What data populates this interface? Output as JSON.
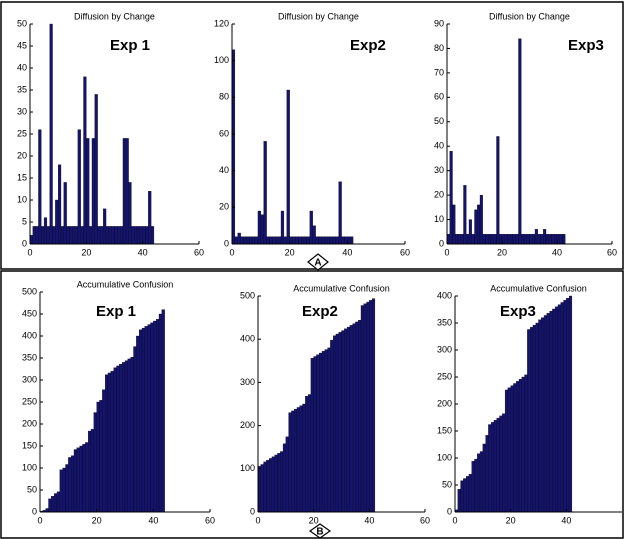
{
  "panels": [
    "A",
    "B"
  ],
  "chart_data": [
    {
      "type": "histogram",
      "title": "Diffusion by Change",
      "annotation": "Exp 1",
      "color": "#14146e",
      "bins": [
        0,
        1,
        2,
        3,
        4,
        5,
        6,
        7,
        8,
        9,
        10,
        11,
        12,
        13,
        14,
        15,
        16,
        17,
        18,
        19,
        20,
        21,
        22,
        23,
        24,
        25,
        26,
        27,
        28,
        29,
        30,
        31,
        32,
        33,
        34,
        35,
        36,
        37,
        38,
        39,
        40,
        41,
        42,
        43,
        44
      ],
      "values": [
        2,
        4,
        4,
        26,
        4,
        6,
        4,
        50,
        4,
        10,
        18,
        4,
        14,
        4,
        4,
        4,
        4,
        26,
        4,
        38,
        24,
        4,
        24,
        34,
        4,
        4,
        8,
        4,
        4,
        4,
        4,
        4,
        4,
        24,
        24,
        14,
        4,
        4,
        4,
        4,
        4,
        4,
        12,
        4
      ],
      "xlim": [
        0,
        60
      ],
      "xticks": [
        0,
        20,
        40,
        60
      ],
      "ylim": [
        0,
        50
      ],
      "yticks": [
        0,
        5,
        10,
        15,
        20,
        25,
        30,
        35,
        40,
        45,
        50
      ]
    },
    {
      "type": "histogram",
      "title": "Diffusion by Change",
      "annotation": "Exp2",
      "color": "#14146e",
      "bins": [
        0,
        1,
        2,
        3,
        4,
        5,
        6,
        7,
        8,
        9,
        10,
        11,
        12,
        13,
        14,
        15,
        16,
        17,
        18,
        19,
        20,
        21,
        22,
        23,
        24,
        25,
        26,
        27,
        28,
        29,
        30,
        31,
        32,
        33,
        34,
        35,
        36,
        37,
        38,
        39,
        40,
        41,
        42
      ],
      "values": [
        106,
        4,
        6,
        4,
        4,
        4,
        4,
        4,
        4,
        18,
        16,
        56,
        4,
        4,
        4,
        4,
        4,
        18,
        4,
        84,
        4,
        4,
        4,
        4,
        4,
        4,
        4,
        18,
        10,
        4,
        4,
        4,
        4,
        4,
        4,
        4,
        4,
        34,
        4,
        4,
        4,
        4
      ],
      "xlim": [
        0,
        60
      ],
      "xticks": [
        0,
        20,
        40,
        60
      ],
      "ylim": [
        0,
        120
      ],
      "yticks": [
        0,
        20,
        40,
        60,
        80,
        100,
        120
      ]
    },
    {
      "type": "histogram",
      "title": "Diffusion by Change",
      "annotation": "Exp3",
      "color": "#14146e",
      "bins": [
        0,
        1,
        2,
        3,
        4,
        5,
        6,
        7,
        8,
        9,
        10,
        11,
        12,
        13,
        14,
        15,
        16,
        17,
        18,
        19,
        20,
        21,
        22,
        23,
        24,
        25,
        26,
        27,
        28,
        29,
        30,
        31,
        32,
        33,
        34,
        35,
        36,
        37,
        38,
        39,
        40,
        41,
        42,
        43
      ],
      "values": [
        4,
        38,
        16,
        4,
        4,
        4,
        24,
        4,
        10,
        4,
        14,
        16,
        20,
        4,
        4,
        4,
        4,
        4,
        44,
        4,
        4,
        4,
        4,
        4,
        4,
        4,
        84,
        4,
        4,
        4,
        4,
        4,
        6,
        4,
        4,
        6,
        4,
        4,
        4,
        4,
        4,
        4,
        4
      ],
      "xlim": [
        0,
        60
      ],
      "xticks": [
        0,
        20,
        40,
        60
      ],
      "ylim": [
        0,
        90
      ],
      "yticks": [
        0,
        10,
        20,
        30,
        40,
        50,
        60,
        70,
        80,
        90
      ]
    },
    {
      "type": "histogram",
      "title": "Accumulative Confusion",
      "annotation": "Exp 1",
      "color": "#14146e",
      "bins": [
        0,
        1,
        2,
        3,
        4,
        5,
        6,
        7,
        8,
        9,
        10,
        11,
        12,
        13,
        14,
        15,
        16,
        17,
        18,
        19,
        20,
        21,
        22,
        23,
        24,
        25,
        26,
        27,
        28,
        29,
        30,
        31,
        32,
        33,
        34,
        35,
        36,
        37,
        38,
        39,
        40,
        41,
        42,
        43,
        44
      ],
      "values": [
        2,
        4,
        8,
        30,
        36,
        42,
        46,
        96,
        100,
        108,
        124,
        128,
        142,
        146,
        150,
        154,
        158,
        184,
        188,
        226,
        250,
        254,
        278,
        312,
        316,
        320,
        328,
        332,
        336,
        340,
        344,
        348,
        352,
        376,
        400,
        414,
        418,
        422,
        426,
        430,
        434,
        438,
        450,
        460
      ],
      "xlim": [
        0,
        60
      ],
      "xticks": [
        0,
        20,
        40,
        60
      ],
      "ylim": [
        0,
        500
      ],
      "yticks": [
        0,
        50,
        100,
        150,
        200,
        250,
        300,
        350,
        400,
        450,
        500
      ]
    },
    {
      "type": "histogram",
      "title": "Accumulative Confusion",
      "annotation": "Exp2",
      "color": "#14146e",
      "bins": [
        0,
        1,
        2,
        3,
        4,
        5,
        6,
        7,
        8,
        9,
        10,
        11,
        12,
        13,
        14,
        15,
        16,
        17,
        18,
        19,
        20,
        21,
        22,
        23,
        24,
        25,
        26,
        27,
        28,
        29,
        30,
        31,
        32,
        33,
        34,
        35,
        36,
        37,
        38,
        39,
        40,
        41,
        42
      ],
      "values": [
        106,
        110,
        116,
        120,
        124,
        128,
        132,
        136,
        140,
        158,
        174,
        230,
        234,
        238,
        242,
        246,
        250,
        268,
        272,
        356,
        360,
        364,
        368,
        372,
        376,
        380,
        398,
        408,
        412,
        416,
        420,
        424,
        428,
        432,
        436,
        440,
        444,
        478,
        482,
        486,
        490,
        494
      ],
      "xlim": [
        0,
        60
      ],
      "xticks": [
        0,
        20,
        40,
        60
      ],
      "ylim": [
        0,
        500
      ],
      "yticks": [
        0,
        100,
        200,
        300,
        400,
        500
      ]
    },
    {
      "type": "histogram",
      "title": "Accumulative Confusion",
      "annotation": "Exp3",
      "color": "#14146e",
      "bins": [
        0,
        1,
        2,
        3,
        4,
        5,
        6,
        7,
        8,
        9,
        10,
        11,
        12,
        13,
        14,
        15,
        16,
        17,
        18,
        19,
        20,
        21,
        22,
        23,
        24,
        25,
        26,
        27,
        28,
        29,
        30,
        31,
        32,
        33,
        34,
        35,
        36,
        37,
        38,
        39,
        40,
        41,
        42
      ],
      "values": [
        4,
        42,
        58,
        62,
        66,
        70,
        94,
        98,
        108,
        112,
        126,
        142,
        162,
        166,
        170,
        174,
        178,
        182,
        226,
        230,
        234,
        238,
        242,
        246,
        250,
        254,
        338,
        342,
        346,
        350,
        356,
        360,
        364,
        368,
        372,
        376,
        380,
        384,
        388,
        392,
        396,
        400
      ],
      "xlim": [
        0,
        60
      ],
      "xticks": [
        0,
        20,
        40
      ],
      "ylim": [
        0,
        400
      ],
      "yticks": [
        0,
        50,
        100,
        150,
        200,
        250,
        300,
        350,
        400
      ]
    }
  ]
}
